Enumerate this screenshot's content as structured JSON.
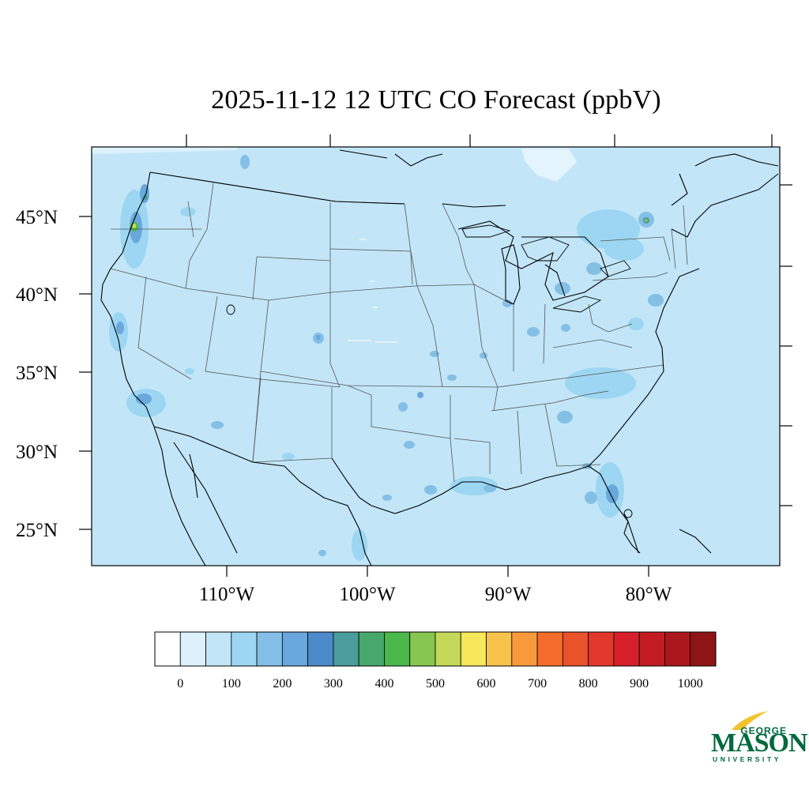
{
  "title": "2025-11-12 12 UTC CO Forecast (ppbV)",
  "map": {
    "region": "Contiguous United States",
    "background_color": "#c2e6f8",
    "coast_color": "#000000",
    "border_color": "#444444",
    "lat_labels": [
      "45°N",
      "40°N",
      "35°N",
      "30°N",
      "25°N"
    ],
    "lon_labels": [
      "110°W",
      "100°W",
      "90°W",
      "80°W"
    ]
  },
  "colorbar": {
    "colors": [
      "#ffffff",
      "#dcf1fb",
      "#c2e6f8",
      "#9cd6f2",
      "#84bfe6",
      "#69a8dc",
      "#4b8bc9",
      "#4b9c9c",
      "#48a86c",
      "#4bb84b",
      "#86c651",
      "#c4d95a",
      "#f8e65b",
      "#f8c34b",
      "#f89a3c",
      "#f46c2c",
      "#ea522c",
      "#e2382c",
      "#d61f2a",
      "#c21b22",
      "#aa171c",
      "#8f1416"
    ],
    "labels": [
      "0",
      "100",
      "200",
      "300",
      "400",
      "500",
      "600",
      "700",
      "800",
      "900",
      "1000"
    ]
  },
  "logo": {
    "line1": "GEORGE",
    "line2": "MASON",
    "line3": "UNIVERSITY",
    "color": "#00693e",
    "accent": "#f2c230"
  }
}
